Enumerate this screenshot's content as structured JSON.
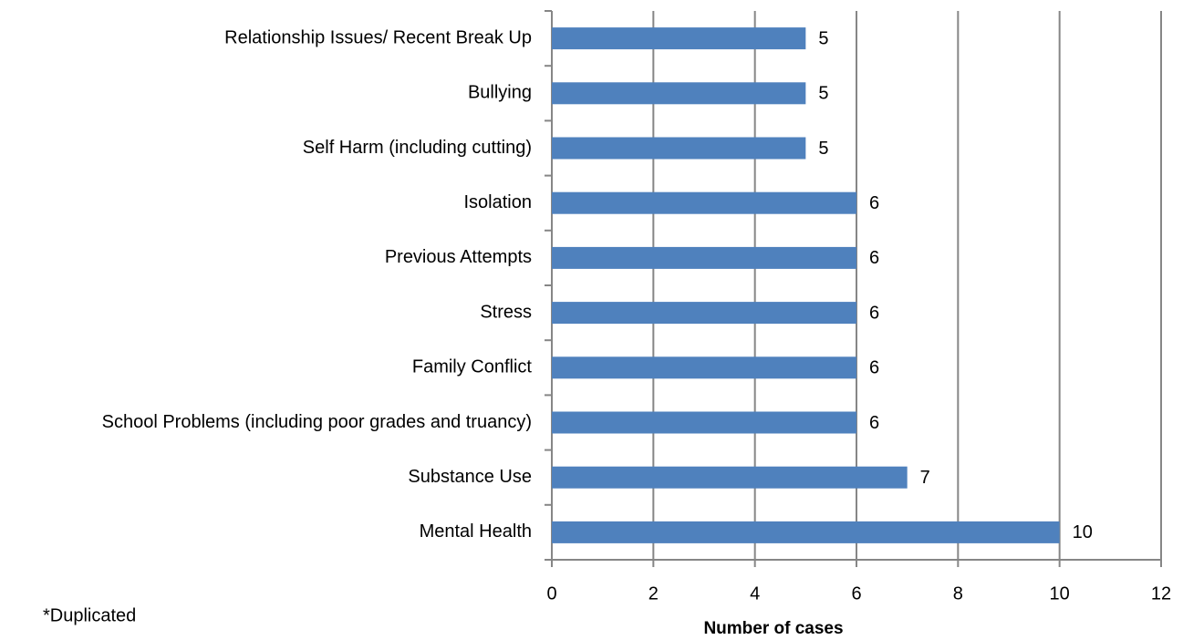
{
  "chart_data": {
    "type": "bar",
    "orientation": "horizontal",
    "categories": [
      "Relationship Issues/ Recent Break Up",
      "Bullying",
      "Self Harm (including cutting)",
      "Isolation",
      "Previous Attempts",
      "Stress",
      "Family Conflict",
      "School Problems (including poor grades and truancy)",
      "Substance Use",
      "Mental Health"
    ],
    "values": [
      5,
      5,
      5,
      6,
      6,
      6,
      6,
      6,
      7,
      10
    ],
    "color": "#4f81bd",
    "xlim": [
      0,
      12
    ],
    "xticks": [
      0,
      2,
      4,
      6,
      8,
      10,
      12
    ],
    "grid": true,
    "x_label": "Number of cases",
    "annotation": "*Duplicated"
  }
}
